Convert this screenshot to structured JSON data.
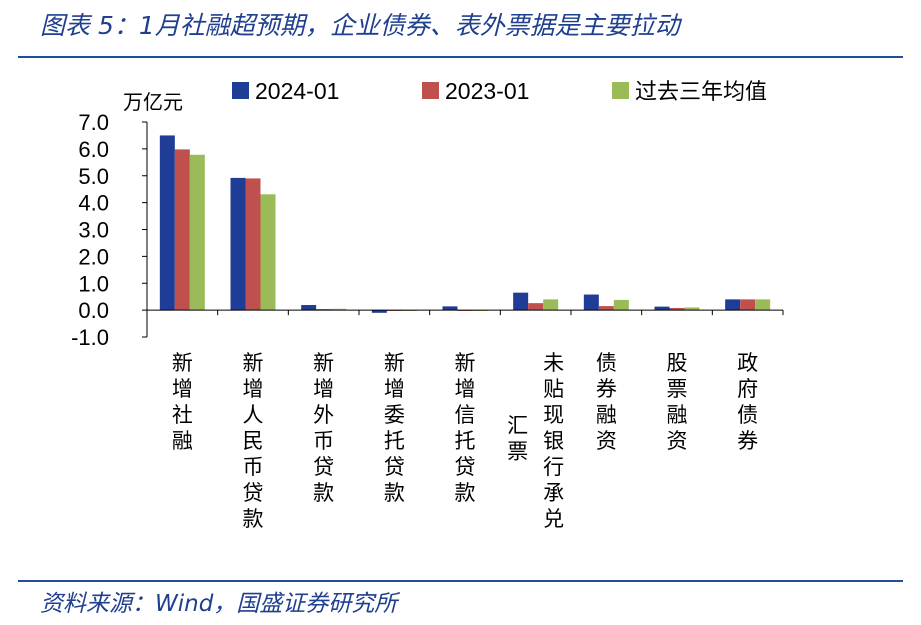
{
  "title": "图表 5：1月社融超预期，企业债券、表外票据是主要拉动",
  "source": "资料来源：Wind，国盛证券研究所",
  "chart_data": {
    "type": "bar",
    "ylabel": "万亿元",
    "ylim": [
      -1.0,
      7.0
    ],
    "yticks": [
      "7.0",
      "6.0",
      "5.0",
      "4.0",
      "3.0",
      "2.0",
      "1.0",
      "0.0",
      "-1.0"
    ],
    "legend_position": "top",
    "categories": [
      [
        "新增社融"
      ],
      [
        "新增人民币贷款"
      ],
      [
        "新增外币贷款"
      ],
      [
        "新增委托贷款"
      ],
      [
        "新增信托贷款"
      ],
      [
        "未贴现银行承兑",
        "汇票"
      ],
      [
        "债券融资"
      ],
      [
        "股票融资"
      ],
      [
        "政府债券"
      ]
    ],
    "series": [
      {
        "name": "2024-01",
        "color": "#1f3c96",
        "values": [
          6.5,
          4.92,
          0.19,
          -0.1,
          0.14,
          0.65,
          0.58,
          0.13,
          0.4
        ]
      },
      {
        "name": "2023-01",
        "color": "#c0504d",
        "values": [
          5.98,
          4.9,
          0.04,
          -0.02,
          0.0,
          0.26,
          0.15,
          0.08,
          0.4
        ]
      },
      {
        "name": "过去三年均值",
        "color": "#9bbb59",
        "values": [
          5.78,
          4.31,
          0.05,
          -0.03,
          -0.03,
          0.4,
          0.38,
          0.1,
          0.4
        ]
      }
    ]
  }
}
